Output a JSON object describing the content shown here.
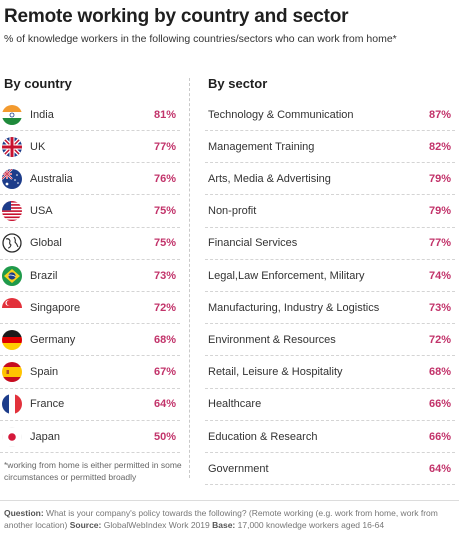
{
  "header": {
    "title": "Remote working by country and sector",
    "subtitle": "% of knowledge workers in the following countries/sectors who can work from home*"
  },
  "columns": {
    "country_heading": "By country",
    "sector_heading": "By sector"
  },
  "colors": {
    "value": "#c2336a",
    "divider": "#d4d4d4"
  },
  "chart_data": {
    "type": "table",
    "title": "Remote working by country and sector",
    "tables": [
      {
        "name": "By country",
        "rows": [
          {
            "label": "India",
            "value": "81%",
            "icon": "india-flag-icon"
          },
          {
            "label": "UK",
            "value": "77%",
            "icon": "uk-flag-icon"
          },
          {
            "label": "Australia",
            "value": "76%",
            "icon": "australia-flag-icon"
          },
          {
            "label": "USA",
            "value": "75%",
            "icon": "usa-flag-icon"
          },
          {
            "label": "Global",
            "value": "75%",
            "icon": "globe-icon"
          },
          {
            "label": "Brazil",
            "value": "73%",
            "icon": "brazil-flag-icon"
          },
          {
            "label": "Singapore",
            "value": "72%",
            "icon": "singapore-flag-icon"
          },
          {
            "label": "Germany",
            "value": "68%",
            "icon": "germany-flag-icon"
          },
          {
            "label": "Spain",
            "value": "67%",
            "icon": "spain-flag-icon"
          },
          {
            "label": "France",
            "value": "64%",
            "icon": "france-flag-icon"
          },
          {
            "label": "Japan",
            "value": "50%",
            "icon": "japan-flag-icon"
          }
        ]
      },
      {
        "name": "By sector",
        "rows": [
          {
            "label": "Technology & Communication",
            "value": "87%"
          },
          {
            "label": "Management Training",
            "value": "82%"
          },
          {
            "label": "Arts, Media & Advertising",
            "value": "79%"
          },
          {
            "label": "Non-profit",
            "value": "79%"
          },
          {
            "label": "Financial Services",
            "value": "77%"
          },
          {
            "label": "Legal,Law Enforcement, Military",
            "value": "74%"
          },
          {
            "label": "Manufacturing, Industry & Logistics",
            "value": "73%"
          },
          {
            "label": "Environment & Resources",
            "value": "72%"
          },
          {
            "label": "Retail, Leisure & Hospitality",
            "value": "68%"
          },
          {
            "label": "Healthcare",
            "value": "66%"
          },
          {
            "label": "Education & Research",
            "value": "66%"
          },
          {
            "label": "Government",
            "value": "64%"
          }
        ]
      }
    ]
  },
  "footnote": "*working from home is either permitted in some circumstances or permitted broadly",
  "source": {
    "question_label": "Question:",
    "question_text": "What is your company's policy towards the following? (Remote working (e.g. work from home, work from another location)",
    "source_label": "Source:",
    "source_text": "GlobalWebIndex Work 2019",
    "base_label": "Base:",
    "base_text": "17,000 knowledge workers aged 16-64"
  }
}
